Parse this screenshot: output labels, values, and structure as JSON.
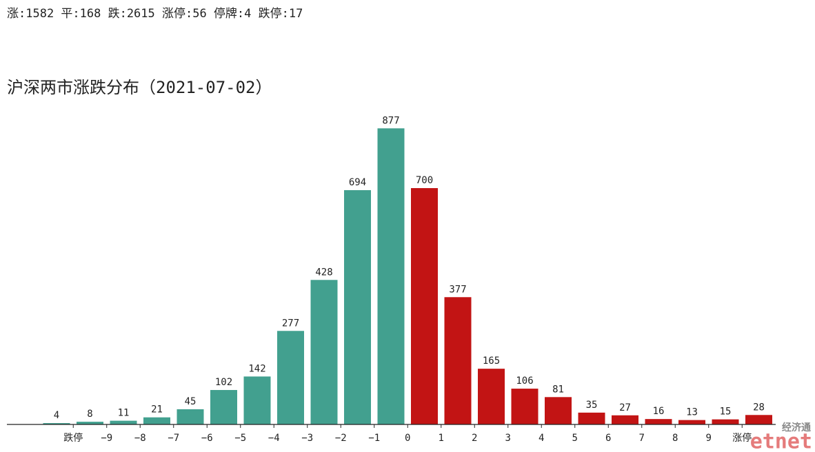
{
  "chart_data": {
    "type": "bar",
    "title": "沪深两市涨跌分布（2021-07-02）",
    "subtitle": "涨:1582 平:168 跌:2615 涨停:56 停牌:4 跌停:17",
    "categories": [
      null,
      null,
      null,
      null,
      null,
      null,
      null,
      null,
      null,
      null,
      null,
      null,
      null,
      null,
      null,
      null,
      null,
      null,
      null,
      null,
      null,
      null
    ],
    "values": [
      4,
      8,
      11,
      21,
      45,
      102,
      142,
      277,
      428,
      694,
      877,
      700,
      377,
      165,
      106,
      81,
      35,
      27,
      16,
      13,
      15,
      28
    ],
    "colors": [
      "#42a08f",
      "#42a08f",
      "#42a08f",
      "#42a08f",
      "#42a08f",
      "#42a08f",
      "#42a08f",
      "#42a08f",
      "#42a08f",
      "#42a08f",
      "#42a08f",
      "#c21414",
      "#c21414",
      "#c21414",
      "#c21414",
      "#c21414",
      "#c21414",
      "#c21414",
      "#c21414",
      "#c21414",
      "#c21414",
      "#c21414"
    ],
    "xtick_labels": [
      "跌停",
      "−9",
      "−8",
      "−7",
      "−6",
      "−5",
      "−4",
      "−3",
      "−2",
      "−1",
      "0",
      "1",
      "2",
      "3",
      "4",
      "5",
      "6",
      "7",
      "8",
      "9",
      "涨停"
    ],
    "ylim": [
      0,
      900
    ]
  },
  "watermark": {
    "label": "经济通",
    "logo": "etnet"
  }
}
